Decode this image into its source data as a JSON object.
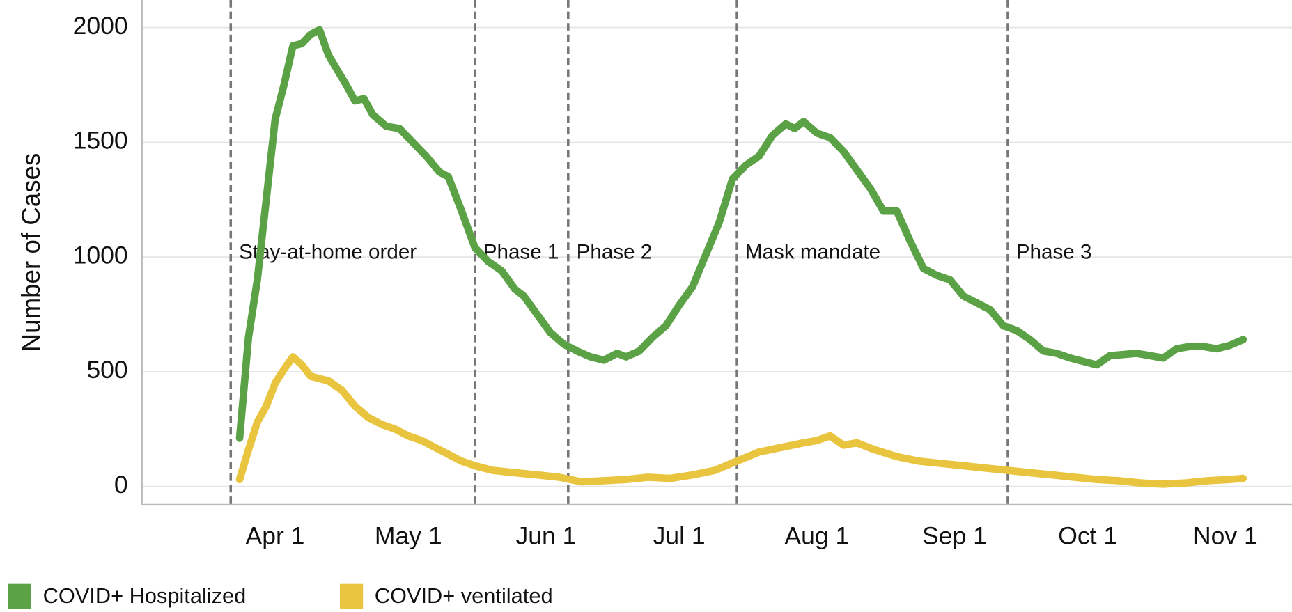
{
  "chart_data": {
    "type": "line",
    "ylabel": "Number of Cases",
    "xlim": [
      "Mar 2",
      "Nov 16"
    ],
    "xticks": [
      "Apr 1",
      "May 1",
      "Jun 1",
      "Jul 1",
      "Aug 1",
      "Sep 1",
      "Oct 1",
      "Nov 1"
    ],
    "ylim": [
      -80,
      2120
    ],
    "yticks": [
      0,
      500,
      1000,
      1500,
      2000
    ],
    "grid": true,
    "legend": "bottom",
    "annotations": [
      {
        "x": "Mar 22",
        "label": "Stay-at-home order"
      },
      {
        "x": "May 16",
        "label": "Phase 1"
      },
      {
        "x": "Jun 6",
        "label": "Phase 2"
      },
      {
        "x": "Jul 14",
        "label": "Mask mandate"
      },
      {
        "x": "Sep 13",
        "label": "Phase 3"
      }
    ],
    "series": [
      {
        "name": "COVID+ Hospitalized",
        "color": "#5ba246",
        "x": [
          "Mar 24",
          "Mar 26",
          "Mar 28",
          "Mar 30",
          "Apr 1",
          "Apr 3",
          "Apr 5",
          "Apr 7",
          "Apr 9",
          "Apr 11",
          "Apr 13",
          "Apr 17",
          "Apr 19",
          "Apr 21",
          "Apr 23",
          "Apr 26",
          "Apr 29",
          "May 2",
          "May 5",
          "May 8",
          "May 10",
          "May 13",
          "May 16",
          "May 19",
          "May 22",
          "May 25",
          "May 27",
          "May 30",
          "Jun 2",
          "Jun 5",
          "Jun 8",
          "Jun 11",
          "Jun 14",
          "Jun 17",
          "Jun 19",
          "Jun 22",
          "Jun 25",
          "Jun 28",
          "Jul 1",
          "Jul 4",
          "Jul 7",
          "Jul 10",
          "Jul 13",
          "Jul 16",
          "Jul 19",
          "Jul 22",
          "Jul 25",
          "Jul 27",
          "Jul 29",
          "Aug 1",
          "Aug 4",
          "Aug 7",
          "Aug 10",
          "Aug 13",
          "Aug 16",
          "Aug 19",
          "Aug 22",
          "Aug 25",
          "Aug 28",
          "Aug 31",
          "Sep 3",
          "Sep 6",
          "Sep 9",
          "Sep 12",
          "Sep 15",
          "Sep 18",
          "Sep 21",
          "Sep 24",
          "Sep 27",
          "Sep 30",
          "Oct 3",
          "Oct 6",
          "Oct 9",
          "Oct 12",
          "Oct 15",
          "Oct 18",
          "Oct 21",
          "Oct 24",
          "Oct 27",
          "Oct 30",
          "Nov 2",
          "Nov 5"
        ],
        "values": [
          210,
          650,
          900,
          1250,
          1600,
          1750,
          1920,
          1930,
          1970,
          1990,
          1880,
          1750,
          1680,
          1690,
          1620,
          1570,
          1560,
          1500,
          1440,
          1370,
          1350,
          1200,
          1040,
          980,
          940,
          860,
          830,
          750,
          670,
          620,
          590,
          565,
          550,
          580,
          565,
          590,
          650,
          700,
          790,
          870,
          1010,
          1150,
          1340,
          1400,
          1440,
          1530,
          1580,
          1560,
          1590,
          1540,
          1520,
          1460,
          1380,
          1300,
          1200,
          1200,
          1070,
          950,
          920,
          900,
          830,
          800,
          770,
          700,
          680,
          640,
          590,
          580,
          560,
          545,
          530,
          570,
          575,
          580,
          570,
          560,
          600,
          610,
          610,
          600,
          615,
          640
        ]
      },
      {
        "name": "COVID+ ventilated",
        "color": "#e9c43e",
        "x": [
          "Mar 24",
          "Mar 26",
          "Mar 28",
          "Mar 30",
          "Apr 1",
          "Apr 3",
          "Apr 5",
          "Apr 7",
          "Apr 9",
          "Apr 11",
          "Apr 13",
          "Apr 16",
          "Apr 19",
          "Apr 22",
          "Apr 25",
          "Apr 28",
          "May 1",
          "May 4",
          "May 7",
          "May 10",
          "May 13",
          "May 16",
          "May 20",
          "May 25",
          "May 30",
          "Jun 4",
          "Jun 9",
          "Jun 14",
          "Jun 19",
          "Jun 24",
          "Jun 29",
          "Jul 4",
          "Jul 9",
          "Jul 14",
          "Jul 19",
          "Jul 24",
          "Jul 29",
          "Aug 1",
          "Aug 4",
          "Aug 7",
          "Aug 10",
          "Aug 14",
          "Aug 19",
          "Aug 24",
          "Aug 29",
          "Sep 3",
          "Sep 8",
          "Sep 13",
          "Sep 18",
          "Sep 23",
          "Sep 28",
          "Oct 3",
          "Oct 8",
          "Oct 13",
          "Oct 18",
          "Oct 23",
          "Oct 28",
          "Nov 2",
          "Nov 5"
        ],
        "values": [
          30,
          160,
          280,
          350,
          450,
          510,
          565,
          530,
          480,
          470,
          460,
          420,
          350,
          300,
          270,
          250,
          220,
          200,
          170,
          140,
          110,
          90,
          70,
          60,
          50,
          40,
          20,
          25,
          30,
          40,
          35,
          50,
          70,
          110,
          150,
          170,
          190,
          200,
          220,
          180,
          190,
          160,
          130,
          110,
          100,
          90,
          80,
          70,
          60,
          50,
          40,
          30,
          25,
          15,
          10,
          15,
          25,
          30,
          35
        ]
      }
    ]
  }
}
